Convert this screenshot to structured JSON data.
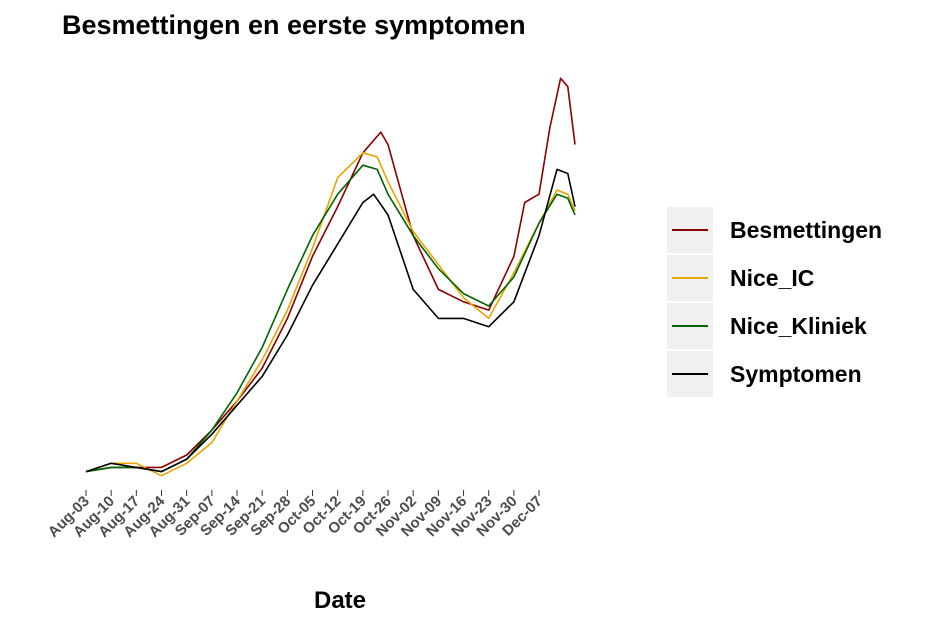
{
  "chart_data": {
    "type": "line",
    "title": "Besmettingen en eerste symptomen",
    "xlabel": "Date",
    "ylabel": "",
    "x_ticks": [
      "Aug-03",
      "Aug-10",
      "Aug-17",
      "Aug-24",
      "Aug-31",
      "Sep-07",
      "Sep-14",
      "Sep-21",
      "Sep-28",
      "Oct-05",
      "Oct-12",
      "Oct-19",
      "Oct-26",
      "Nov-02",
      "Nov-09",
      "Nov-16",
      "Nov-23",
      "Nov-30",
      "Dec-07"
    ],
    "x_range": [
      "2020-08-03",
      "2020-12-17"
    ],
    "y_axis_labels_shown": false,
    "grid": false,
    "legend_position": "right",
    "series": [
      {
        "name": "Besmettingen",
        "color": "#8b0000",
        "points": [
          [
            "2020-08-03",
            0.03
          ],
          [
            "2020-08-10",
            0.04
          ],
          [
            "2020-08-17",
            0.04
          ],
          [
            "2020-08-24",
            0.04
          ],
          [
            "2020-08-31",
            0.07
          ],
          [
            "2020-09-07",
            0.13
          ],
          [
            "2020-09-14",
            0.2
          ],
          [
            "2020-09-21",
            0.28
          ],
          [
            "2020-09-28",
            0.4
          ],
          [
            "2020-10-05",
            0.55
          ],
          [
            "2020-10-12",
            0.67
          ],
          [
            "2020-10-19",
            0.8
          ],
          [
            "2020-10-24",
            0.85
          ],
          [
            "2020-10-26",
            0.82
          ],
          [
            "2020-11-02",
            0.6
          ],
          [
            "2020-11-09",
            0.47
          ],
          [
            "2020-11-16",
            0.44
          ],
          [
            "2020-11-23",
            0.42
          ],
          [
            "2020-11-30",
            0.55
          ],
          [
            "2020-12-03",
            0.68
          ],
          [
            "2020-12-07",
            0.7
          ],
          [
            "2020-12-10",
            0.86
          ],
          [
            "2020-12-13",
            0.98
          ],
          [
            "2020-12-15",
            0.96
          ],
          [
            "2020-12-17",
            0.82
          ]
        ]
      },
      {
        "name": "Nice_IC",
        "color": "#e8a400",
        "points": [
          [
            "2020-08-03",
            0.03
          ],
          [
            "2020-08-10",
            0.05
          ],
          [
            "2020-08-17",
            0.05
          ],
          [
            "2020-08-24",
            0.02
          ],
          [
            "2020-08-31",
            0.05
          ],
          [
            "2020-09-07",
            0.1
          ],
          [
            "2020-09-14",
            0.2
          ],
          [
            "2020-09-21",
            0.3
          ],
          [
            "2020-09-28",
            0.42
          ],
          [
            "2020-10-05",
            0.57
          ],
          [
            "2020-10-12",
            0.74
          ],
          [
            "2020-10-19",
            0.8
          ],
          [
            "2020-10-23",
            0.79
          ],
          [
            "2020-10-26",
            0.73
          ],
          [
            "2020-11-02",
            0.61
          ],
          [
            "2020-11-09",
            0.53
          ],
          [
            "2020-11-16",
            0.45
          ],
          [
            "2020-11-23",
            0.4
          ],
          [
            "2020-11-30",
            0.51
          ],
          [
            "2020-12-07",
            0.63
          ],
          [
            "2020-12-12",
            0.71
          ],
          [
            "2020-12-15",
            0.7
          ],
          [
            "2020-12-17",
            0.66
          ]
        ]
      },
      {
        "name": "Nice_Kliniek",
        "color": "#006400",
        "points": [
          [
            "2020-08-03",
            0.03
          ],
          [
            "2020-08-10",
            0.04
          ],
          [
            "2020-08-17",
            0.04
          ],
          [
            "2020-08-24",
            0.03
          ],
          [
            "2020-08-31",
            0.06
          ],
          [
            "2020-09-07",
            0.13
          ],
          [
            "2020-09-14",
            0.22
          ],
          [
            "2020-09-21",
            0.33
          ],
          [
            "2020-09-28",
            0.47
          ],
          [
            "2020-10-05",
            0.6
          ],
          [
            "2020-10-12",
            0.7
          ],
          [
            "2020-10-19",
            0.77
          ],
          [
            "2020-10-23",
            0.76
          ],
          [
            "2020-10-26",
            0.7
          ],
          [
            "2020-11-02",
            0.6
          ],
          [
            "2020-11-09",
            0.52
          ],
          [
            "2020-11-16",
            0.46
          ],
          [
            "2020-11-23",
            0.43
          ],
          [
            "2020-11-30",
            0.5
          ],
          [
            "2020-12-07",
            0.63
          ],
          [
            "2020-12-12",
            0.7
          ],
          [
            "2020-12-15",
            0.69
          ],
          [
            "2020-12-17",
            0.65
          ]
        ]
      },
      {
        "name": "Symptomen",
        "color": "#000000",
        "points": [
          [
            "2020-08-03",
            0.03
          ],
          [
            "2020-08-10",
            0.05
          ],
          [
            "2020-08-17",
            0.04
          ],
          [
            "2020-08-24",
            0.03
          ],
          [
            "2020-08-31",
            0.06
          ],
          [
            "2020-09-07",
            0.12
          ],
          [
            "2020-09-14",
            0.19
          ],
          [
            "2020-09-21",
            0.26
          ],
          [
            "2020-09-28",
            0.36
          ],
          [
            "2020-10-05",
            0.48
          ],
          [
            "2020-10-12",
            0.58
          ],
          [
            "2020-10-19",
            0.68
          ],
          [
            "2020-10-22",
            0.7
          ],
          [
            "2020-10-26",
            0.65
          ],
          [
            "2020-11-02",
            0.47
          ],
          [
            "2020-11-09",
            0.4
          ],
          [
            "2020-11-16",
            0.4
          ],
          [
            "2020-11-23",
            0.38
          ],
          [
            "2020-11-30",
            0.44
          ],
          [
            "2020-12-07",
            0.6
          ],
          [
            "2020-12-12",
            0.76
          ],
          [
            "2020-12-15",
            0.75
          ],
          [
            "2020-12-17",
            0.67
          ]
        ]
      }
    ]
  }
}
